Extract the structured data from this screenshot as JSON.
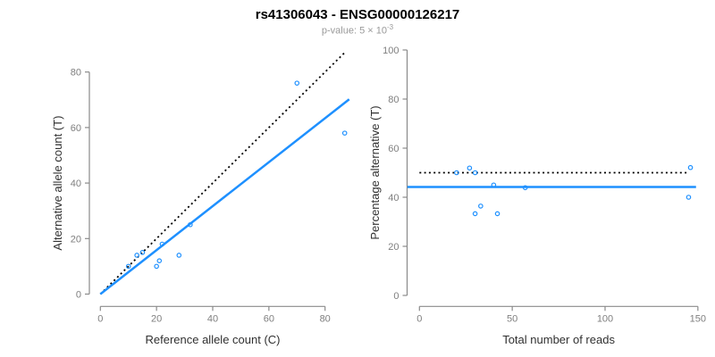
{
  "title": "rs41306043 - ENSG00000126217",
  "subtitle": {
    "label": "p-value: 5 × 10",
    "exponent": "-3"
  },
  "colors": {
    "accent_blue": "#1E90FF",
    "dashed_black": "#000000",
    "axis_gray": "#8a8a8a",
    "tick_label_gray": "#7f7f7f",
    "axis_title_dark": "#303030",
    "subtitle_gray": "#999999"
  },
  "chart_data": [
    {
      "type": "scatter",
      "panel": "left",
      "xlabel": "Reference allele count (C)",
      "ylabel": "Alternative allele count (T)",
      "xlim": [
        0,
        88
      ],
      "ylim": [
        0,
        88
      ],
      "xticks": [
        0,
        20,
        40,
        60,
        80
      ],
      "yticks": [
        0,
        20,
        40,
        60,
        80
      ],
      "grid": false,
      "points": [
        [
          10,
          10
        ],
        [
          13,
          14
        ],
        [
          15,
          15
        ],
        [
          22,
          18
        ],
        [
          32,
          25
        ],
        [
          21,
          12
        ],
        [
          20,
          10
        ],
        [
          28,
          14
        ],
        [
          70,
          76
        ],
        [
          87,
          58
        ]
      ],
      "lines": [
        {
          "name": "identity-line",
          "style": "dashed",
          "color": "black",
          "slope": 1,
          "intercept": 0
        },
        {
          "name": "fit-line",
          "style": "solid",
          "color": "blue",
          "slope": 0.792,
          "intercept": 0
        }
      ]
    },
    {
      "type": "scatter",
      "panel": "right",
      "xlabel": "Total number of reads",
      "ylabel": "Percentage alternative (T)",
      "xlim": [
        0,
        150
      ],
      "ylim": [
        0,
        100
      ],
      "xticks": [
        0,
        50,
        100,
        150
      ],
      "yticks": [
        0,
        20,
        40,
        60,
        80,
        100
      ],
      "grid": false,
      "points": [
        [
          20,
          50
        ],
        [
          27,
          51.9
        ],
        [
          30,
          50
        ],
        [
          40,
          45
        ],
        [
          57,
          43.9
        ],
        [
          33,
          36.4
        ],
        [
          30,
          33.3
        ],
        [
          42,
          33.3
        ],
        [
          146,
          52.1
        ],
        [
          145,
          40
        ]
      ],
      "lines": [
        {
          "name": "expected-50pct-line",
          "style": "dashed",
          "color": "black",
          "slope": 0,
          "intercept": 50
        },
        {
          "name": "overall-pct-line",
          "style": "solid",
          "color": "blue",
          "slope": 0,
          "intercept": 44.2
        }
      ]
    }
  ]
}
